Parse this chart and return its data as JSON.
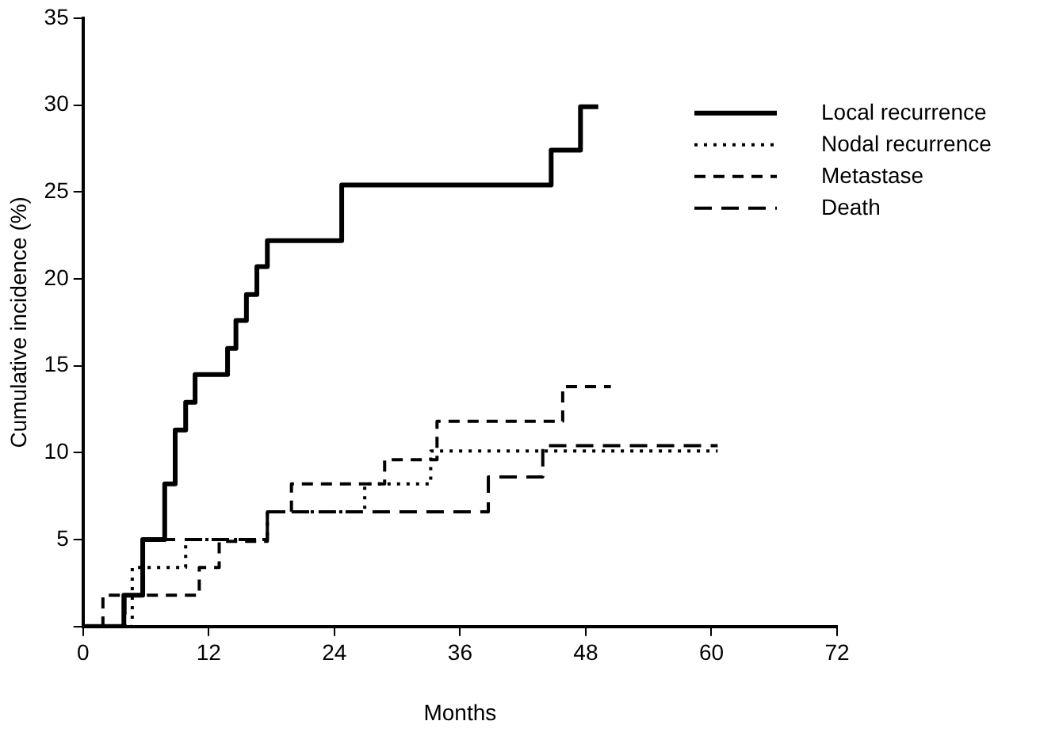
{
  "chart_data": {
    "type": "step",
    "xlabel": "Months",
    "ylabel": "Cumulative incidence (%)",
    "xlim": [
      0,
      72
    ],
    "xticks": [
      0,
      12,
      24,
      36,
      48,
      60,
      72
    ],
    "ylim": [
      0,
      35
    ],
    "yticks": [
      {
        "value": 0,
        "label": null
      },
      5,
      10,
      15,
      20,
      25,
      30,
      35
    ],
    "grid": false,
    "legend": "top right",
    "marker": "none",
    "series": [
      {
        "name": "Local recurrence",
        "color": "#000000",
        "line_style": "solid",
        "x": [
          0,
          3.9,
          5.7,
          7.8,
          8.8,
          9.8,
          10.7,
          13.8,
          14.6,
          15.6,
          16.6,
          17.6,
          24.7,
          44.7,
          47.5,
          49.2
        ],
        "values": [
          0,
          1.8,
          5.0,
          8.2,
          11.3,
          12.9,
          14.5,
          16.0,
          17.6,
          19.1,
          20.7,
          22.2,
          25.4,
          27.4,
          29.9,
          29.9
        ]
      },
      {
        "name": "Nodal recurrence",
        "color": "#000000",
        "line_style": "dotted",
        "x": [
          0,
          4.7,
          9.8,
          17.6,
          26.9,
          33.2,
          60.6
        ],
        "values": [
          0,
          3.4,
          5.0,
          6.6,
          8.2,
          10.1,
          10.1
        ]
      },
      {
        "name": "Metastase",
        "color": "#000000",
        "line_style": "dashed",
        "x": [
          0,
          1.9,
          11.1,
          13.0,
          17.6,
          19.9,
          28.8,
          33.8,
          45.8,
          50.4
        ],
        "values": [
          0,
          1.8,
          3.4,
          4.9,
          6.6,
          8.2,
          9.6,
          11.8,
          13.8,
          13.8
        ]
      },
      {
        "name": "Death",
        "color": "#000000",
        "line_style": "dashed",
        "x": [
          0,
          4.0,
          5.7,
          17.6,
          38.7,
          43.9,
          60.6
        ],
        "values": [
          0,
          1.8,
          5.0,
          6.6,
          8.6,
          10.4,
          10.4
        ]
      }
    ]
  }
}
